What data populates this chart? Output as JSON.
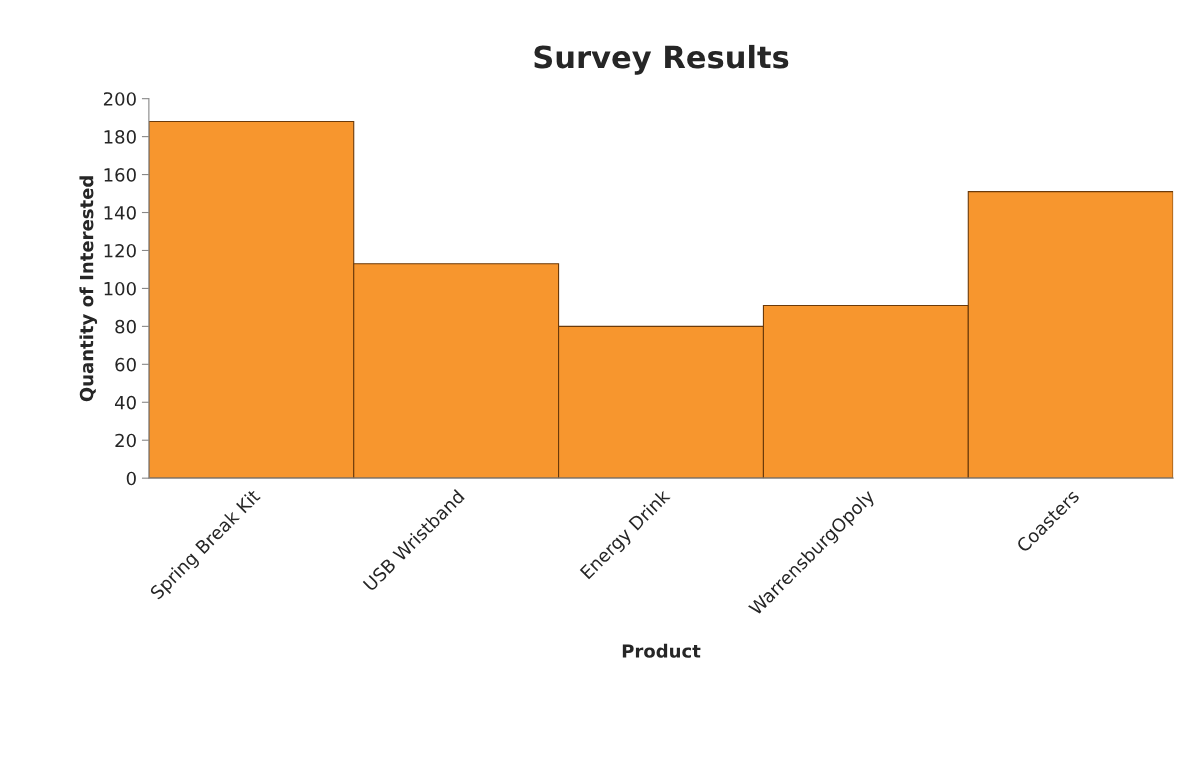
{
  "chart_data": {
    "type": "bar",
    "title": "Survey Results",
    "xlabel": "Product",
    "ylabel": "Quantity of Interested",
    "categories": [
      "Spring Break Kit",
      "USB Wristband",
      "Energy Drink",
      "WarrensburgOpoly",
      "Coasters"
    ],
    "values": [
      188,
      113,
      80,
      91,
      151
    ],
    "color": "#f7962e",
    "ylim": [
      0,
      200
    ],
    "yticks": [
      0,
      20,
      40,
      60,
      80,
      100,
      120,
      140,
      160,
      180,
      200
    ],
    "grid": false,
    "legend": false
  }
}
